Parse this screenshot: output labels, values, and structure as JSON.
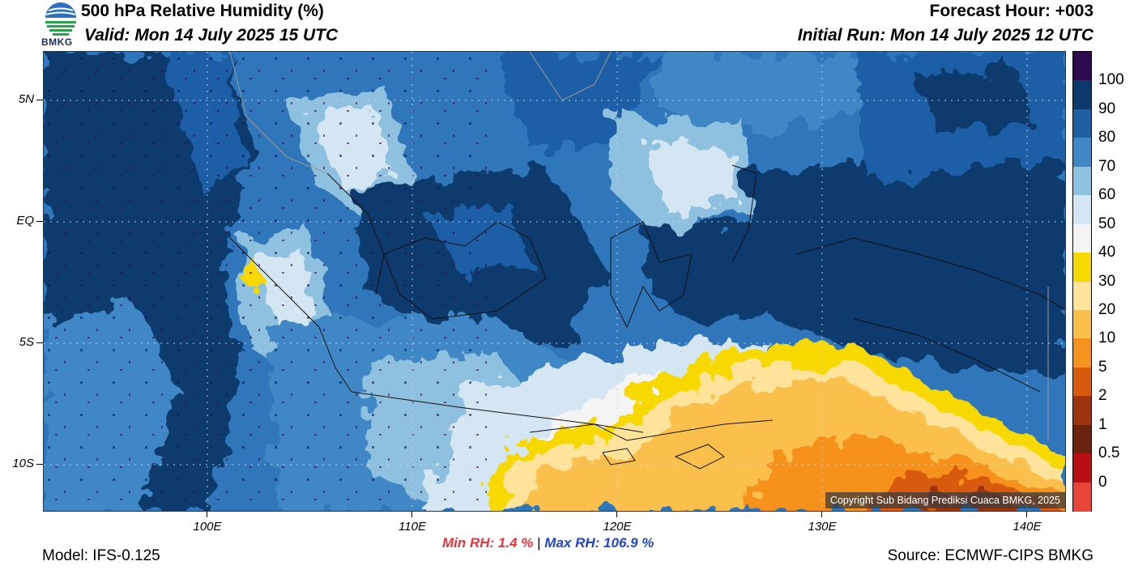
{
  "header": {
    "title": "500 hPa Relative Humidity (%)",
    "valid": "Valid: Mon 14 July 2025 15 UTC",
    "forecast_hour": "Forecast Hour: +003",
    "initial_run": "Initial Run: Mon 14 July 2025 12 UTC",
    "logo_text": "BMKG"
  },
  "axes": {
    "lat_labels": [
      "5N",
      "EQ",
      "5S",
      "10S"
    ],
    "lon_labels": [
      "100E",
      "110E",
      "120E",
      "130E",
      "140E"
    ]
  },
  "stats": {
    "min": "Min RH:   1.4 %",
    "separator": "|",
    "max": "Max RH: 106.9 %"
  },
  "footer": {
    "model": "Model: IFS-0.125",
    "source": "Source: ECMWF-CIPS BMKG",
    "copyright": "Copyright Sub Bidang Prediksi Cuaca BMKG, 2025"
  },
  "colorbar": {
    "labels": [
      "100",
      "90",
      "80",
      "70",
      "60",
      "50",
      "40",
      "30",
      "20",
      "10",
      "5",
      "2",
      "1",
      "0.5",
      "0"
    ],
    "colors": [
      "#2e0a4e",
      "#0d3a6e",
      "#1f5fa6",
      "#3f88c5",
      "#8ec0df",
      "#d3e6f1",
      "#f4f4f4",
      "#f7d800",
      "#fde49a",
      "#fbbf4c",
      "#f6921e",
      "#d85a0c",
      "#9b3510",
      "#6b2210",
      "#b80e14",
      "#e8453a"
    ]
  },
  "colors": {
    "ocean_mid": "#2f76ba",
    "humid_dark": "#0d3a6e",
    "dry_orange": "#f6921e"
  }
}
